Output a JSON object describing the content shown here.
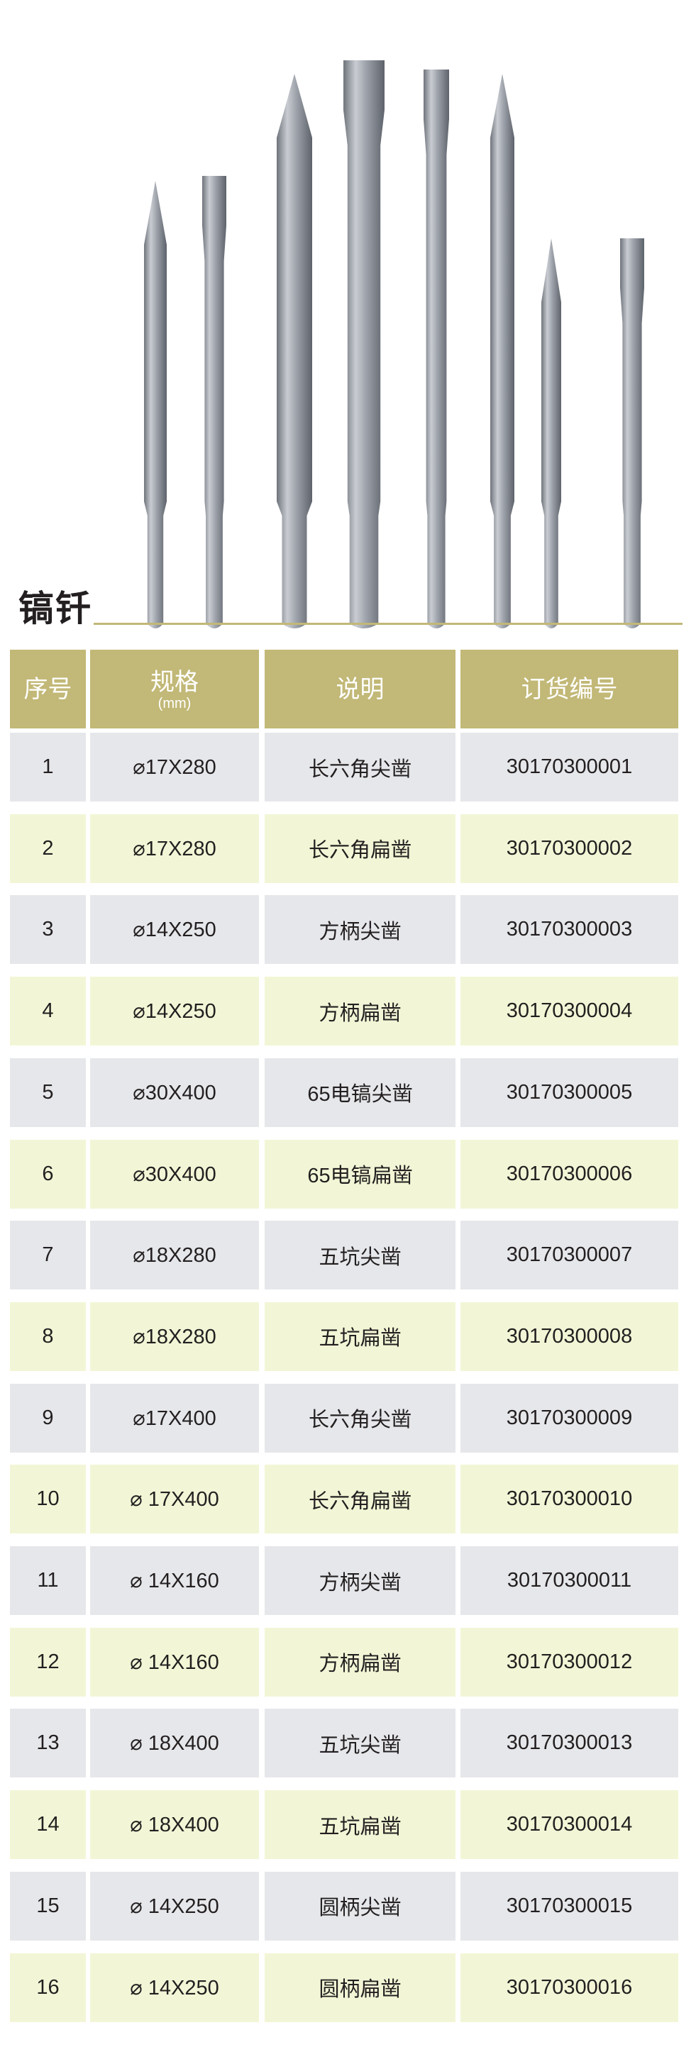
{
  "title": "镐钎",
  "colors": {
    "header": "#c2b877",
    "row_odd": "#e6e7ea",
    "row_even": "#f2f6d6",
    "rule": "#c2b877"
  },
  "table": {
    "headers": {
      "no": "序号",
      "spec": "规格",
      "spec_unit": "(mm)",
      "desc": "说明",
      "code": "订货编号"
    },
    "rows": [
      {
        "no": "1",
        "spec": "⌀17X280",
        "desc": "长六角尖凿",
        "code": "30170300001"
      },
      {
        "no": "2",
        "spec": "⌀17X280",
        "desc": "长六角扁凿",
        "code": "30170300002"
      },
      {
        "no": "3",
        "spec": "⌀14X250",
        "desc": "方柄尖凿",
        "code": "30170300003"
      },
      {
        "no": "4",
        "spec": "⌀14X250",
        "desc": "方柄扁凿",
        "code": "30170300004"
      },
      {
        "no": "5",
        "spec": "⌀30X400",
        "desc": "65电镐尖凿",
        "code": "30170300005"
      },
      {
        "no": "6",
        "spec": "⌀30X400",
        "desc": "65电镐扁凿",
        "code": "30170300006"
      },
      {
        "no": "7",
        "spec": "⌀18X280",
        "desc": "五坑尖凿",
        "code": "30170300007"
      },
      {
        "no": "8",
        "spec": "⌀18X280",
        "desc": "五坑扁凿",
        "code": "30170300008"
      },
      {
        "no": "9",
        "spec": "⌀17X400",
        "desc": "长六角尖凿",
        "code": "30170300009"
      },
      {
        "no": "10",
        "spec": "⌀ 17X400",
        "desc": "长六角扁凿",
        "code": "30170300010"
      },
      {
        "no": "11",
        "spec": "⌀ 14X160",
        "desc": "方柄尖凿",
        "code": "30170300011"
      },
      {
        "no": "12",
        "spec": "⌀ 14X160",
        "desc": "方柄扁凿",
        "code": "30170300012"
      },
      {
        "no": "13",
        "spec": "⌀ 18X400",
        "desc": "五坑尖凿",
        "code": "30170300013"
      },
      {
        "no": "14",
        "spec": "⌀ 18X400",
        "desc": "五坑扁凿",
        "code": "30170300014"
      },
      {
        "no": "15",
        "spec": "⌀ 14X250",
        "desc": "圆柄尖凿",
        "code": "30170300015"
      },
      {
        "no": "16",
        "spec": "⌀ 14X250",
        "desc": "圆柄扁凿",
        "code": "30170300016"
      }
    ]
  }
}
